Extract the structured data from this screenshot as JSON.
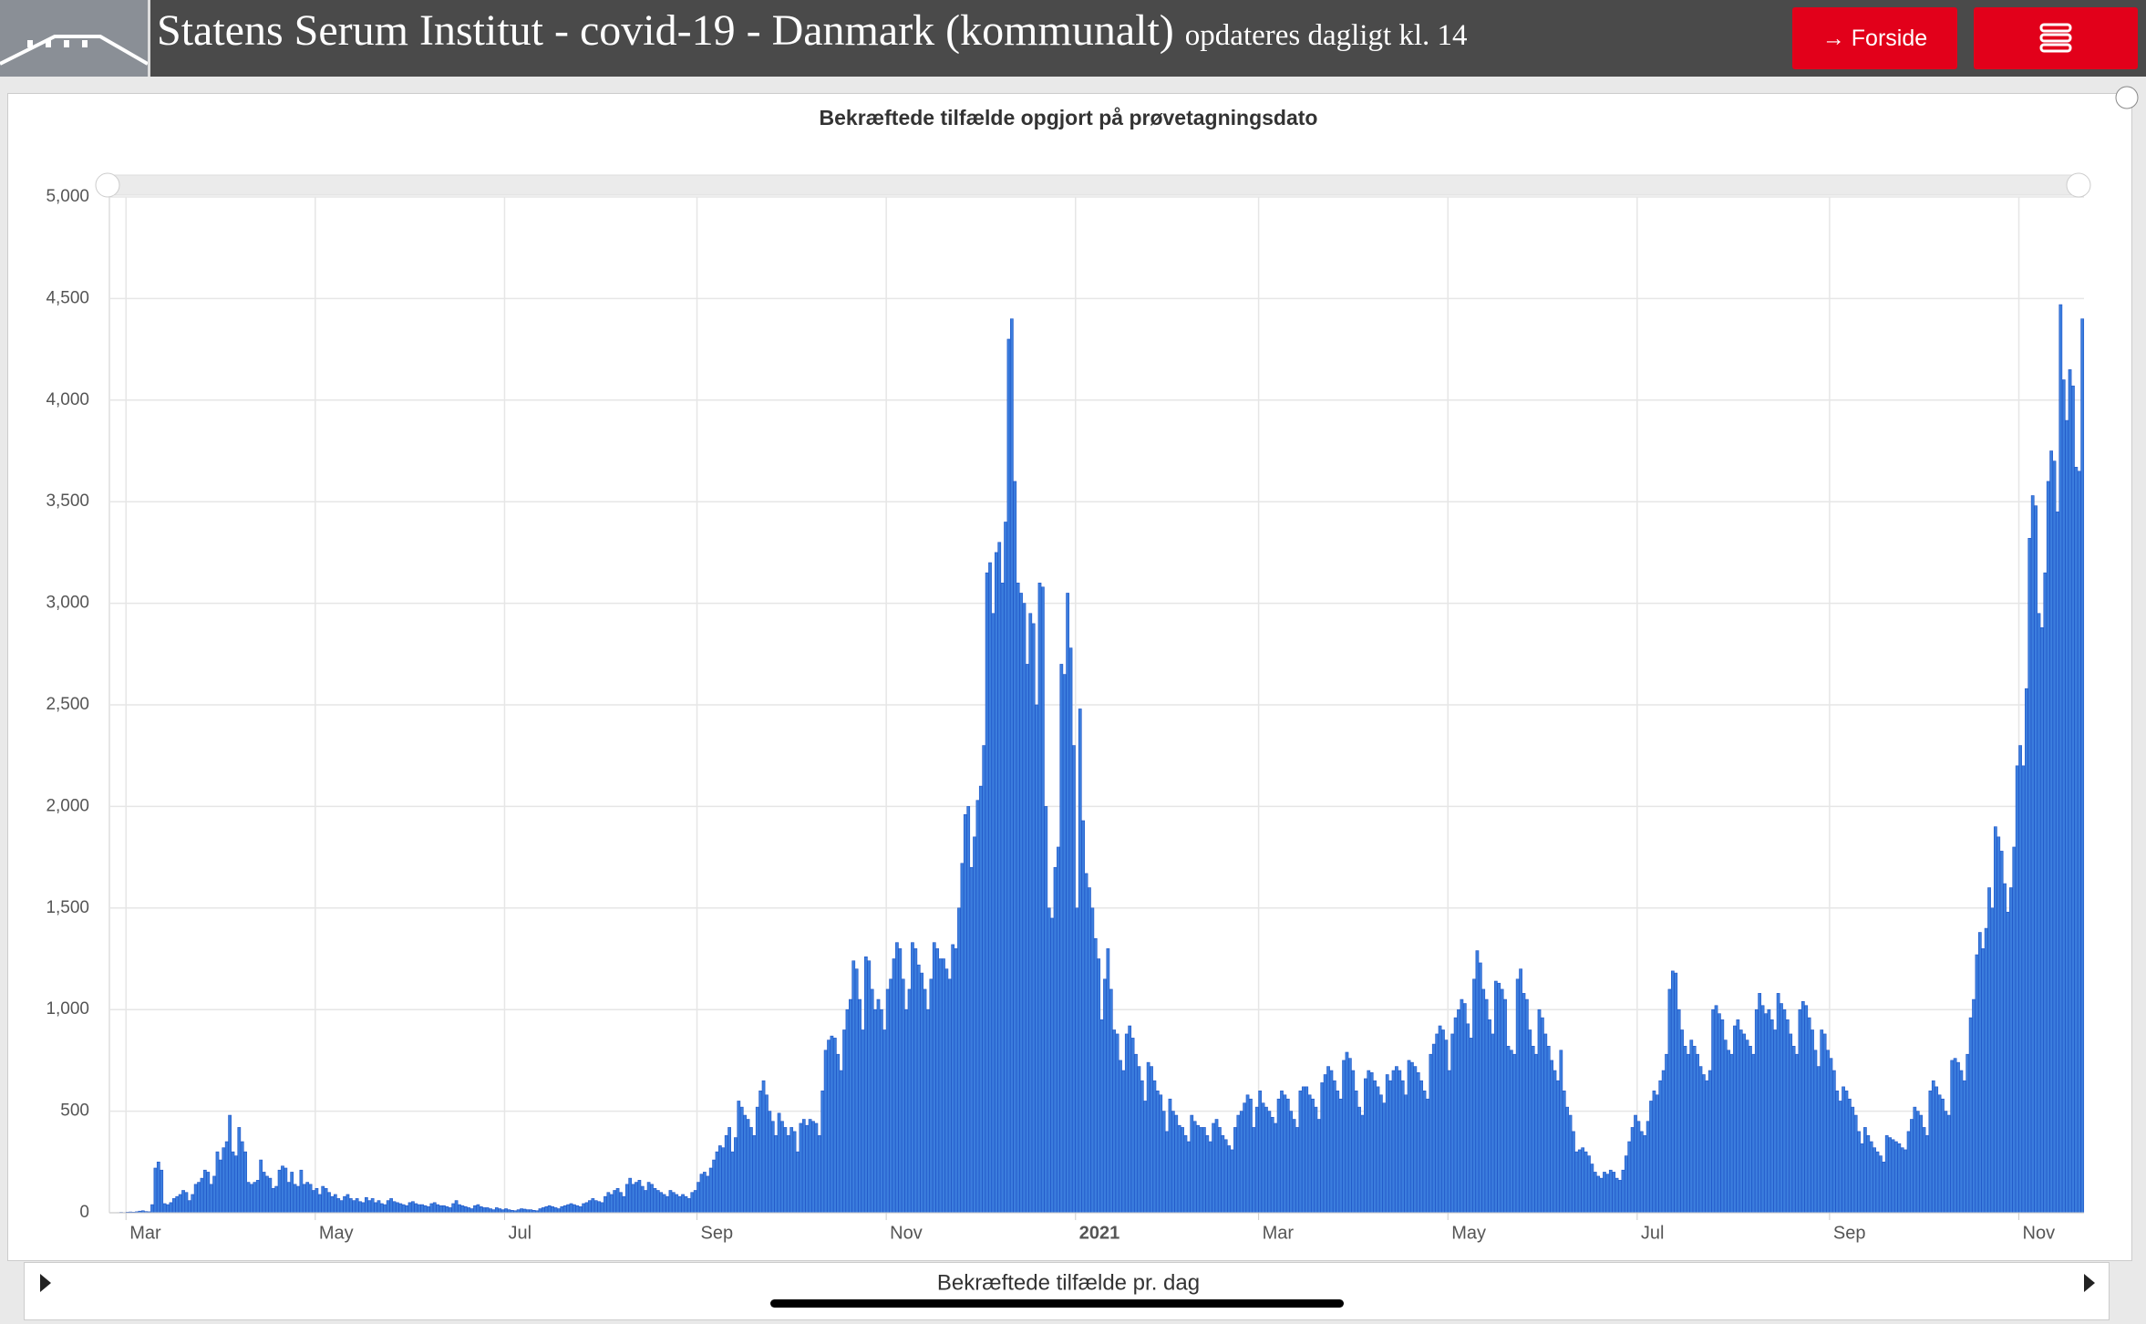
{
  "header": {
    "title": "Statens Serum Institut - covid-19 - Danmark (kommunalt)",
    "subtitle": "opdateres dagligt kl. 14",
    "button": "Forside"
  },
  "chart_data": {
    "type": "bar",
    "title": "Bekræftede tilfælde opgjort på prøvetagningsdato",
    "categories": [
      null,
      null,
      null,
      "Mar",
      null,
      null,
      null,
      null,
      null,
      null,
      null,
      null,
      null,
      null,
      null,
      null,
      null,
      null,
      null,
      null,
      null,
      null,
      null,
      null,
      null,
      null,
      null,
      null,
      null,
      null,
      null,
      null,
      null,
      null,
      null,
      null,
      null,
      null,
      null,
      null,
      null,
      null,
      null,
      null,
      null,
      null,
      null,
      null,
      null,
      null,
      null,
      null,
      null,
      null,
      null,
      null,
      null,
      null,
      null,
      null,
      null,
      null,
      null,
      null,
      "May",
      null,
      null,
      null,
      null,
      null,
      null,
      null,
      null,
      null,
      null,
      null,
      null,
      null,
      null,
      null,
      null,
      null,
      null,
      null,
      null,
      null,
      null,
      null,
      null,
      null,
      null,
      null,
      null,
      null,
      null,
      null,
      null,
      null,
      null,
      null,
      null,
      null,
      null,
      null,
      null,
      null,
      null,
      null,
      null,
      null,
      null,
      null,
      null,
      null,
      null,
      null,
      null,
      null,
      null,
      null,
      null,
      null,
      null,
      null,
      null,
      "Jul",
      null,
      null,
      null,
      null,
      null,
      null,
      null,
      null,
      null,
      null,
      null,
      null,
      null,
      null,
      null,
      null,
      null,
      null,
      null,
      null,
      null,
      null,
      null,
      null,
      null,
      null,
      null,
      null,
      null,
      null,
      null,
      null,
      null,
      null,
      null,
      null,
      null,
      null,
      null,
      null,
      null,
      null,
      null,
      null,
      null,
      null,
      null,
      null,
      null,
      null,
      null,
      null,
      null,
      null,
      null,
      null,
      null,
      null,
      null,
      null,
      null,
      "Sep",
      null,
      null,
      null,
      null,
      null,
      null,
      null,
      null,
      null,
      null,
      null,
      null,
      null,
      null,
      null,
      null,
      null,
      null,
      null,
      null,
      null,
      null,
      null,
      null,
      null,
      null,
      null,
      null,
      null,
      null,
      null,
      null,
      null,
      null,
      null,
      null,
      null,
      null,
      null,
      null,
      null,
      null,
      null,
      null,
      null,
      null,
      null,
      null,
      null,
      null,
      null,
      null,
      null,
      null,
      null,
      null,
      null,
      null,
      null,
      null,
      "Nov",
      null,
      null,
      null,
      null,
      null,
      null,
      null,
      null,
      null,
      null,
      null,
      null,
      null,
      null,
      null,
      null,
      null,
      null,
      null,
      null,
      null,
      null,
      null,
      null,
      null,
      null,
      null,
      null,
      null,
      null,
      null,
      null,
      null,
      null,
      null,
      null,
      null,
      null,
      null,
      null,
      null,
      null,
      null,
      null,
      null,
      null,
      null,
      null,
      null,
      null,
      null,
      null,
      null,
      null,
      null,
      null,
      null,
      null,
      null,
      null,
      "2021",
      null,
      null,
      null,
      null,
      null,
      null,
      null,
      null,
      null,
      null,
      null,
      null,
      null,
      null,
      null,
      null,
      null,
      null,
      null,
      null,
      null,
      null,
      null,
      null,
      null,
      null,
      null,
      null,
      null,
      null,
      null,
      null,
      null,
      null,
      null,
      null,
      null,
      null,
      null,
      null,
      null,
      null,
      null,
      null,
      null,
      null,
      null,
      null,
      null,
      null,
      null,
      null,
      null,
      null,
      null,
      null,
      null,
      null,
      "Mar",
      null,
      null,
      null,
      null,
      null,
      null,
      null,
      null,
      null,
      null,
      null,
      null,
      null,
      null,
      null,
      null,
      null,
      null,
      null,
      null,
      null,
      null,
      null,
      null,
      null,
      null,
      null,
      null,
      null,
      null,
      null,
      null,
      null,
      null,
      null,
      null,
      null,
      null,
      null,
      null,
      null,
      null,
      null,
      null,
      null,
      null,
      null,
      null,
      null,
      null,
      null,
      null,
      null,
      null,
      null,
      null,
      null,
      null,
      null,
      null,
      "May",
      null,
      null,
      null,
      null,
      null,
      null,
      null,
      null,
      null,
      null,
      null,
      null,
      null,
      null,
      null,
      null,
      null,
      null,
      null,
      null,
      null,
      null,
      null,
      null,
      null,
      null,
      null,
      null,
      null,
      null,
      null,
      null,
      null,
      null,
      null,
      null,
      null,
      null,
      null,
      null,
      null,
      null,
      null,
      null,
      null,
      null,
      null,
      null,
      null,
      null,
      null,
      null,
      null,
      null,
      null,
      null,
      null,
      null,
      null,
      null,
      "Jul",
      null,
      null,
      null,
      null,
      null,
      null,
      null,
      null,
      null,
      null,
      null,
      null,
      null,
      null,
      null,
      null,
      null,
      null,
      null,
      null,
      null,
      null,
      null,
      null,
      null,
      null,
      null,
      null,
      null,
      null,
      null,
      null,
      null,
      null,
      null,
      null,
      null,
      null,
      null,
      null,
      null,
      null,
      null,
      null,
      null,
      null,
      null,
      null,
      null,
      null,
      null,
      null,
      null,
      null,
      null,
      null,
      null,
      null,
      null,
      null,
      null,
      "Sep",
      null,
      null,
      null,
      null,
      null,
      null,
      null,
      null,
      null,
      null,
      null,
      null,
      null,
      null,
      null,
      null,
      null,
      null,
      null,
      null,
      null,
      null,
      null,
      null,
      null,
      null,
      null,
      null,
      null,
      null,
      null,
      null,
      null,
      null,
      null,
      null,
      null,
      null,
      null,
      null,
      null,
      null,
      null,
      null,
      null,
      null,
      null,
      null,
      null,
      null,
      null,
      null,
      null,
      null,
      null,
      null,
      null,
      null,
      null,
      null,
      "Nov",
      null,
      null,
      null,
      null,
      null,
      null,
      null,
      null,
      null,
      null,
      null,
      null,
      null,
      null,
      null,
      null,
      null,
      null,
      null,
      null
    ],
    "series": [
      {
        "name": "Bekræftede tilfælde pr. dag",
        "color": "#3b7ddd",
        "values": [
          1,
          2,
          1,
          3,
          4,
          3,
          5,
          8,
          10,
          6,
          5,
          40,
          220,
          250,
          210,
          45,
          40,
          50,
          70,
          80,
          90,
          110,
          100,
          60,
          90,
          140,
          150,
          170,
          210,
          200,
          140,
          180,
          300,
          260,
          320,
          350,
          480,
          300,
          280,
          420,
          350,
          300,
          150,
          140,
          150,
          160,
          260,
          200,
          180,
          170,
          120,
          130,
          210,
          230,
          220,
          150,
          200,
          140,
          130,
          210,
          140,
          150,
          140,
          110,
          120,
          90,
          130,
          120,
          100,
          80,
          90,
          70,
          60,
          80,
          90,
          70,
          60,
          70,
          55,
          50,
          75,
          60,
          70,
          50,
          60,
          45,
          40,
          60,
          70,
          55,
          50,
          45,
          40,
          35,
          50,
          55,
          45,
          40,
          40,
          35,
          30,
          45,
          50,
          40,
          35,
          35,
          30,
          25,
          45,
          60,
          40,
          35,
          30,
          25,
          20,
          35,
          40,
          30,
          25,
          25,
          20,
          15,
          25,
          20,
          15,
          20,
          15,
          12,
          10,
          15,
          20,
          18,
          15,
          15,
          12,
          10,
          20,
          25,
          30,
          35,
          30,
          25,
          20,
          30,
          35,
          40,
          45,
          40,
          35,
          30,
          45,
          50,
          60,
          70,
          60,
          55,
          50,
          80,
          100,
          90,
          110,
          120,
          100,
          80,
          140,
          170,
          140,
          150,
          160,
          130,
          110,
          150,
          140,
          120,
          110,
          100,
          90,
          80,
          110,
          100,
          90,
          80,
          90,
          80,
          70,
          100,
          110,
          150,
          190,
          200,
          180,
          220,
          260,
          300,
          330,
          320,
          380,
          420,
          300,
          370,
          550,
          520,
          480,
          460,
          420,
          380,
          520,
          600,
          650,
          580,
          500,
          450,
          380,
          490,
          450,
          420,
          380,
          420,
          400,
          300,
          440,
          460,
          430,
          460,
          450,
          440,
          380,
          600,
          800,
          850,
          870,
          860,
          780,
          700,
          900,
          1000,
          1050,
          1240,
          1200,
          1050,
          900,
          1260,
          1240,
          1100,
          1000,
          1050,
          1000,
          900,
          1100,
          1150,
          1250,
          1330,
          1300,
          1150,
          1000,
          1100,
          1330,
          1300,
          1220,
          1180,
          1100,
          1000,
          1150,
          1330,
          1300,
          1250,
          1250,
          1200,
          1150,
          1320,
          1300,
          1500,
          1720,
          1960,
          2000,
          1700,
          1850,
          2030,
          2100,
          2300,
          3150,
          3200,
          2950,
          3250,
          3300,
          3100,
          3400,
          4300,
          4400,
          3600,
          3100,
          3050,
          3000,
          2700,
          2950,
          2900,
          2500,
          3100,
          3080,
          2000,
          1500,
          1450,
          1700,
          1800,
          2700,
          2650,
          3050,
          2780,
          2300,
          1500,
          2480,
          1930,
          1670,
          1600,
          1500,
          1350,
          1250,
          950,
          1150,
          1300,
          1100,
          900,
          880,
          750,
          700,
          880,
          920,
          860,
          780,
          720,
          650,
          550,
          740,
          720,
          650,
          600,
          580,
          500,
          400,
          560,
          500,
          480,
          430,
          420,
          380,
          350,
          480,
          450,
          430,
          420,
          420,
          380,
          350,
          440,
          460,
          420,
          380,
          360,
          330,
          310,
          420,
          480,
          500,
          540,
          580,
          560,
          420,
          520,
          600,
          540,
          520,
          500,
          470,
          440,
          560,
          600,
          580,
          560,
          500,
          460,
          420,
          600,
          620,
          620,
          580,
          560,
          520,
          460,
          640,
          680,
          720,
          700,
          650,
          600,
          560,
          750,
          790,
          760,
          700,
          600,
          520,
          480,
          660,
          700,
          690,
          650,
          620,
          580,
          540,
          680,
          650,
          700,
          720,
          700,
          650,
          580,
          750,
          740,
          720,
          690,
          650,
          600,
          560,
          780,
          830,
          880,
          920,
          900,
          850,
          700,
          880,
          960,
          1000,
          1050,
          1030,
          930,
          860,
          1150,
          1290,
          1230,
          1100,
          1050,
          950,
          880,
          1140,
          1130,
          1100,
          1050,
          820,
          800,
          780,
          1150,
          1200,
          1080,
          1050,
          900,
          820,
          780,
          1000,
          960,
          880,
          820,
          750,
          700,
          650,
          800,
          600,
          520,
          480,
          400,
          300,
          310,
          320,
          300,
          280,
          240,
          200,
          180,
          170,
          200,
          190,
          210,
          200,
          170,
          160,
          210,
          280,
          350,
          420,
          480,
          450,
          400,
          380,
          450,
          550,
          600,
          580,
          650,
          700,
          780,
          1100,
          1190,
          1180,
          1000,
          900,
          820,
          780,
          850,
          820,
          780,
          720,
          680,
          650,
          700,
          1000,
          1020,
          980,
          950,
          850,
          800,
          780,
          920,
          950,
          900,
          880,
          850,
          820,
          780,
          1000,
          1080,
          1020,
          980,
          1000,
          950,
          900,
          1080,
          1030,
          1000,
          950,
          880,
          820,
          780,
          1000,
          1040,
          1020,
          960,
          900,
          800,
          720,
          900,
          880,
          800,
          760,
          700,
          600,
          550,
          620,
          600,
          560,
          520,
          480,
          400,
          340,
          420,
          380,
          350,
          320,
          300,
          280,
          250,
          380,
          370,
          360,
          350,
          340,
          320,
          310,
          400,
          460,
          520,
          500,
          480,
          420,
          380,
          600,
          650,
          620,
          580,
          560,
          500,
          480,
          750,
          760,
          740,
          700,
          650,
          780,
          960,
          1050,
          1270,
          1380,
          1300,
          1400,
          1600,
          1500,
          1900,
          1850,
          1780,
          1620,
          1480,
          1600,
          1800,
          2200,
          2300,
          2200,
          2580,
          3320,
          3530,
          3480,
          2950,
          2880,
          3150,
          3600,
          3750,
          3700,
          3450,
          4470,
          4100,
          3900,
          4150,
          4070,
          3670,
          3650,
          4400
        ]
      }
    ],
    "ylim": [
      0,
      5000
    ],
    "yticks": [
      0,
      500,
      {
        "value": 1000,
        "label": "1,000"
      },
      {
        "value": 1500,
        "label": "1,500"
      },
      {
        "value": 2000,
        "label": "2,000"
      },
      {
        "value": 2500,
        "label": "2,500"
      },
      {
        "value": 3000,
        "label": "3,000"
      },
      {
        "value": 3500,
        "label": "3,500"
      },
      {
        "value": 4000,
        "label": "4,000"
      },
      {
        "value": 4500,
        "label": "4,500"
      },
      {
        "value": 5000,
        "label": "5,000"
      }
    ],
    "grid": true
  }
}
